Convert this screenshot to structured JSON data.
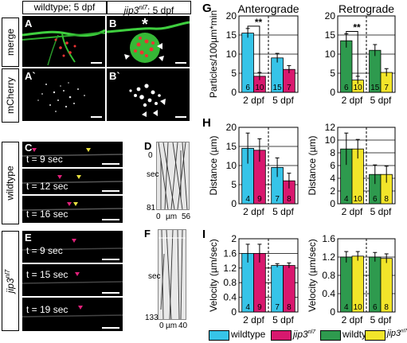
{
  "figure": {
    "headers": {
      "wildtype": "wildtype; 5 dpf",
      "jip3_base": "jip3",
      "jip3_sup": "nl7",
      "jip3_rest": "; 5 dpf"
    },
    "row_labels": {
      "merge": "merge",
      "mcherry": "mCherry",
      "wildtype": "wildtype",
      "jip3_base": "jip3",
      "jip3_sup": "nl7"
    },
    "panels": {
      "A": "A",
      "B": "B",
      "A2": "A`",
      "B2": "B`",
      "C": "C",
      "D": "D",
      "E": "E",
      "F": "F",
      "G": "G",
      "H": "H",
      "I": "I"
    },
    "asterisk": "*",
    "times_C": [
      "t = 9 sec",
      "t = 12 sec",
      "t = 16 sec"
    ],
    "times_E": [
      "t = 9 sec",
      "t = 15 sec",
      "t = 19 sec"
    ],
    "kymo_D": {
      "top": "0",
      "axis": "sec",
      "bottom": "81",
      "x0": "0",
      "unit": "µm",
      "x1": "56"
    },
    "kymo_F": {
      "top": "0",
      "axis": "sec",
      "bottom": "133",
      "x0": "0",
      "unit": "µm",
      "x1": "40"
    }
  },
  "colors": {
    "wildtype": "#36c4e8",
    "jip3": "#d8186e",
    "wildtype2": "#2e9a4e",
    "jip3_2": "#f2e52a",
    "magenta_arrow": "#e0207a",
    "yellow_arrow": "#e8e040"
  },
  "legend": [
    {
      "label": "wildtype",
      "color": "#36c4e8"
    },
    {
      "label_base": "jip3",
      "label_sup": "nl7",
      "color": "#d8186e"
    },
    {
      "label": "wildtype",
      "color": "#2e9a4e"
    },
    {
      "label_base": "jip3",
      "label_sup": "nl7",
      "color": "#f2e52a"
    }
  ],
  "chart_data": [
    {
      "panel": "G",
      "type": "bar",
      "title": "Anterograde",
      "ylabel": "Particles/100µm*min",
      "ylim": [
        0,
        20
      ],
      "yticks": [
        0,
        5,
        10,
        15,
        20
      ],
      "categories": [
        "2 dpf",
        "5 dpf"
      ],
      "series": [
        {
          "name": "wildtype",
          "values": [
            15.5,
            9.0
          ],
          "err": [
            1.2,
            1.2
          ],
          "n": [
            "6",
            "15"
          ]
        },
        {
          "name": "jip3nl7",
          "values": [
            4.2,
            6.0
          ],
          "err": [
            1.0,
            1.0
          ],
          "n": [
            "10",
            "7"
          ]
        }
      ],
      "significance": "**"
    },
    {
      "panel": "G",
      "type": "bar",
      "title": "Retrograde",
      "ylabel": "",
      "ylim": [
        0,
        20
      ],
      "yticks": [
        0,
        5,
        10,
        15,
        20
      ],
      "categories": [
        "2 dpf",
        "5 dpf"
      ],
      "series": [
        {
          "name": "wildtype",
          "values": [
            13.5,
            11.0
          ],
          "err": [
            1.8,
            1.5
          ],
          "n": [
            "6",
            "15"
          ]
        },
        {
          "name": "jip3nl7",
          "values": [
            3.2,
            5.2
          ],
          "err": [
            1.0,
            1.0
          ],
          "n": [
            "10",
            "7"
          ]
        }
      ],
      "significance": "**"
    },
    {
      "panel": "H",
      "type": "bar",
      "title": "",
      "ylabel": "Distance (µm)",
      "ylim": [
        0,
        20
      ],
      "yticks": [
        0,
        5,
        10,
        15,
        20
      ],
      "categories": [
        "2 dpf",
        "5 dpf"
      ],
      "series": [
        {
          "name": "wildtype",
          "values": [
            14.5,
            9.5
          ],
          "err": [
            4.0,
            2.5
          ],
          "n": [
            "4",
            "7"
          ]
        },
        {
          "name": "jip3nl7",
          "values": [
            14.0,
            6.0
          ],
          "err": [
            3.0,
            2.0
          ],
          "n": [
            "9",
            "8"
          ]
        }
      ]
    },
    {
      "panel": "H",
      "type": "bar",
      "title": "",
      "ylabel": "Distance (µm)",
      "ylim": [
        0,
        12
      ],
      "yticks": [
        0,
        2,
        4,
        6,
        8,
        10,
        12
      ],
      "categories": [
        "2 dpf",
        "5 dpf"
      ],
      "series": [
        {
          "name": "wildtype",
          "values": [
            8.6,
            4.6
          ],
          "err": [
            2.5,
            1.5
          ],
          "n": [
            "4",
            "6"
          ]
        },
        {
          "name": "jip3nl7",
          "values": [
            8.6,
            4.6
          ],
          "err": [
            1.5,
            1.3
          ],
          "n": [
            "10",
            "8"
          ]
        }
      ]
    },
    {
      "panel": "I",
      "type": "bar",
      "title": "",
      "ylabel": "Velocity (µm/sec)",
      "ylim": [
        0,
        2.0
      ],
      "yticks": [
        0,
        0.4,
        0.8,
        1.2,
        1.6,
        2.0
      ],
      "categories": [
        "2 dpf",
        "5 dpf"
      ],
      "series": [
        {
          "name": "wildtype",
          "values": [
            1.6,
            1.27
          ],
          "err": [
            0.25,
            0.05
          ],
          "n": [
            "4",
            "7"
          ]
        },
        {
          "name": "jip3nl7",
          "values": [
            1.6,
            1.27
          ],
          "err": [
            0.25,
            0.07
          ],
          "n": [
            "9",
            "8"
          ]
        }
      ]
    },
    {
      "panel": "I",
      "type": "bar",
      "title": "",
      "ylabel": "Velocity (µm/sec)",
      "ylim": [
        0,
        1.6
      ],
      "yticks": [
        0,
        0.4,
        0.8,
        1.2,
        1.6
      ],
      "categories": [
        "2 dpf",
        "5 dpf"
      ],
      "series": [
        {
          "name": "wildtype",
          "values": [
            1.2,
            1.2
          ],
          "err": [
            0.12,
            0.1
          ],
          "n": [
            "4",
            "6"
          ]
        },
        {
          "name": "jip3nl7",
          "values": [
            1.22,
            1.17
          ],
          "err": [
            0.1,
            0.1
          ],
          "n": [
            "10",
            "8"
          ]
        }
      ]
    }
  ]
}
